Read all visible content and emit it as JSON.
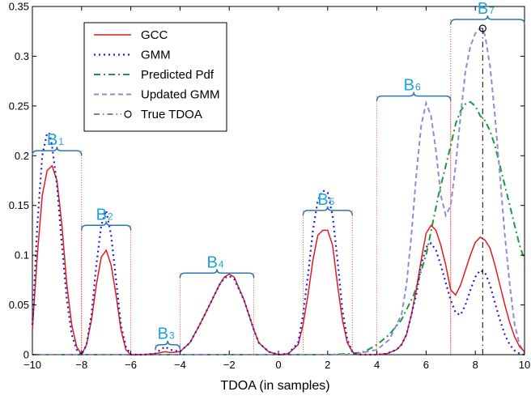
{
  "chart_data": {
    "type": "line",
    "title": "",
    "xlabel": "TDOA (in samples)",
    "ylabel": "",
    "xlim": [
      -10,
      10
    ],
    "ylim": [
      0,
      0.35
    ],
    "xticks": [
      -10,
      -8,
      -6,
      -4,
      -2,
      0,
      2,
      4,
      6,
      8,
      10
    ],
    "yticks": [
      0,
      0.05,
      0.1,
      0.15,
      0.2,
      0.25,
      0.3,
      0.35
    ],
    "xtick_labels": [
      "−10",
      "−8",
      "−6",
      "−4",
      "−2",
      "0",
      "2",
      "4",
      "6",
      "8",
      "10"
    ],
    "ytick_labels": [
      "0",
      "0.05",
      "0.1",
      "0.15",
      "0.2",
      "0.25",
      "0.3",
      "0.35"
    ],
    "grid": false,
    "legend_position": "top-left",
    "legend": [
      "GCC",
      "GMM",
      "Predicted Pdf",
      "Updated GMM",
      "True TDOA"
    ],
    "true_tdoa": {
      "x": 8.3,
      "y": 0.328
    },
    "series": [
      {
        "name": "GCC",
        "color": "#e41a1c",
        "style": "solid",
        "x": [
          -10,
          -9.8,
          -9.6,
          -9.4,
          -9.2,
          -9,
          -8.8,
          -8.6,
          -8.4,
          -8.2,
          -8,
          -7.8,
          -7.6,
          -7.4,
          -7.2,
          -7,
          -6.8,
          -6.6,
          -6.4,
          -6.2,
          -6,
          -5.5,
          -5,
          -4.8,
          -4.6,
          -4.4,
          -4,
          -3.6,
          -3.2,
          -2.8,
          -2.4,
          -2.2,
          -2,
          -1.8,
          -1.4,
          -1.2,
          -1,
          -0.8,
          -0.4,
          0,
          0.4,
          0.8,
          1,
          1.2,
          1.4,
          1.6,
          1.8,
          2,
          2.2,
          2.4,
          2.6,
          2.8,
          3,
          3.2,
          3.6,
          4,
          4.4,
          4.8,
          5,
          5.2,
          5.4,
          5.6,
          5.8,
          6,
          6.2,
          6.4,
          6.6,
          6.8,
          7,
          7.2,
          7.4,
          7.6,
          7.8,
          8,
          8.2,
          8.4,
          8.6,
          8.8,
          9,
          9.2,
          9.4,
          9.6,
          9.8,
          10
        ],
        "y": [
          0.025,
          0.1,
          0.16,
          0.185,
          0.19,
          0.175,
          0.13,
          0.07,
          0.03,
          0.008,
          0,
          0.01,
          0.035,
          0.07,
          0.098,
          0.105,
          0.09,
          0.06,
          0.025,
          0.005,
          0,
          0,
          0.001,
          0.002,
          0.003,
          0.002,
          0.003,
          0.012,
          0.03,
          0.05,
          0.07,
          0.078,
          0.081,
          0.078,
          0.055,
          0.04,
          0.025,
          0.012,
          0.003,
          0,
          0.001,
          0.01,
          0.03,
          0.06,
          0.095,
          0.12,
          0.125,
          0.125,
          0.11,
          0.07,
          0.035,
          0.012,
          0.003,
          0,
          0,
          0,
          0.001,
          0.005,
          0.01,
          0.02,
          0.04,
          0.065,
          0.095,
          0.122,
          0.13,
          0.125,
          0.11,
          0.09,
          0.065,
          0.06,
          0.07,
          0.085,
          0.1,
          0.113,
          0.118,
          0.115,
          0.107,
          0.09,
          0.07,
          0.05,
          0.032,
          0.018,
          0.008,
          0.003
        ]
      },
      {
        "name": "GMM",
        "color": "#1f1fd6",
        "style": "dotted",
        "x": [
          -10,
          -9.8,
          -9.6,
          -9.4,
          -9.3,
          -9.2,
          -9,
          -8.8,
          -8.6,
          -8.4,
          -8.2,
          -8,
          -7.8,
          -7.6,
          -7.4,
          -7.2,
          -7,
          -6.8,
          -6.6,
          -6.4,
          -6.2,
          -6,
          -5.5,
          -5,
          -4.8,
          -4.6,
          -4.4,
          -4,
          -3.6,
          -3.2,
          -2.8,
          -2.4,
          -2.2,
          -2,
          -1.8,
          -1.4,
          -1.2,
          -1,
          -0.8,
          -0.4,
          0,
          0.4,
          0.8,
          1,
          1.2,
          1.4,
          1.6,
          1.8,
          2,
          2.2,
          2.4,
          2.6,
          2.8,
          3,
          3.2,
          3.6,
          4,
          4.4,
          4.8,
          5,
          5.2,
          5.4,
          5.6,
          5.8,
          6,
          6.2,
          6.4,
          6.6,
          6.8,
          7,
          7.2,
          7.4,
          7.6,
          7.8,
          8,
          8.2,
          8.4,
          8.6,
          8.8,
          9,
          9.2,
          9.4,
          9.6,
          9.8,
          10
        ],
        "y": [
          0.03,
          0.13,
          0.2,
          0.223,
          0.222,
          0.21,
          0.17,
          0.11,
          0.055,
          0.02,
          0.005,
          0,
          0.01,
          0.04,
          0.09,
          0.13,
          0.145,
          0.12,
          0.075,
          0.03,
          0.008,
          0,
          0,
          0.001,
          0.005,
          0.008,
          0.005,
          0.003,
          0.012,
          0.03,
          0.05,
          0.07,
          0.077,
          0.079,
          0.076,
          0.055,
          0.04,
          0.025,
          0.012,
          0.003,
          0,
          0.001,
          0.012,
          0.04,
          0.08,
          0.125,
          0.155,
          0.165,
          0.163,
          0.14,
          0.095,
          0.045,
          0.015,
          0.003,
          0,
          0,
          0,
          0.001,
          0.005,
          0.01,
          0.02,
          0.04,
          0.06,
          0.09,
          0.108,
          0.112,
          0.105,
          0.09,
          0.072,
          0.055,
          0.042,
          0.04,
          0.05,
          0.065,
          0.078,
          0.085,
          0.082,
          0.07,
          0.052,
          0.035,
          0.02,
          0.01,
          0.004,
          0.001,
          0
        ]
      },
      {
        "name": "Predicted Pdf",
        "color": "#1a9a3a",
        "style": "dashdot",
        "x": [
          -10,
          -6,
          -2,
          2,
          3,
          3.5,
          4,
          4.5,
          5,
          5.5,
          6,
          6.5,
          7,
          7.2,
          7.4,
          7.6,
          7.8,
          8,
          8.2,
          8.4,
          8.6,
          8.8,
          9,
          9.2,
          9.4,
          9.6,
          9.8,
          10
        ],
        "y": [
          0,
          0,
          0,
          0,
          0.001,
          0.003,
          0.01,
          0.02,
          0.035,
          0.06,
          0.1,
          0.16,
          0.21,
          0.232,
          0.245,
          0.252,
          0.254,
          0.25,
          0.24,
          0.235,
          0.225,
          0.21,
          0.19,
          0.17,
          0.15,
          0.13,
          0.11,
          0.095
        ]
      },
      {
        "name": "Updated GMM",
        "color": "#8c8cd9",
        "style": "dashed",
        "x": [
          -10,
          -6,
          -2,
          2,
          3,
          4,
          4.5,
          5,
          5.2,
          5.4,
          5.6,
          5.8,
          6,
          6.2,
          6.4,
          6.6,
          6.8,
          7,
          7.2,
          7.4,
          7.6,
          7.8,
          8,
          8.2,
          8.3,
          8.4,
          8.6,
          8.8,
          9,
          9.2,
          9.4,
          9.6,
          9.8,
          10
        ],
        "y": [
          0,
          0,
          0,
          0,
          0,
          0.005,
          0.015,
          0.04,
          0.07,
          0.12,
          0.18,
          0.23,
          0.253,
          0.24,
          0.205,
          0.16,
          0.14,
          0.15,
          0.19,
          0.24,
          0.285,
          0.31,
          0.323,
          0.328,
          0.328,
          0.32,
          0.29,
          0.24,
          0.18,
          0.12,
          0.07,
          0.03,
          0.01,
          0.002
        ]
      }
    ],
    "annotations": [
      {
        "name": "B",
        "sub": "1",
        "x0": -10,
        "x1": -8,
        "y": 0.205
      },
      {
        "name": "B",
        "sub": "2",
        "x0": -8,
        "x1": -6,
        "y": 0.13
      },
      {
        "name": "B",
        "sub": "3",
        "x0": -5,
        "x1": -4,
        "y": 0.01
      },
      {
        "name": "B",
        "sub": "4",
        "x0": -4,
        "x1": -1,
        "y": 0.082
      },
      {
        "name": "B",
        "sub": "5",
        "x0": 1,
        "x1": 3,
        "y": 0.145
      },
      {
        "name": "B",
        "sub": "6",
        "x0": 4,
        "x1": 7,
        "y": 0.26
      },
      {
        "name": "B",
        "sub": "7",
        "x0": 7,
        "x1": 10,
        "y": 0.337
      }
    ]
  }
}
